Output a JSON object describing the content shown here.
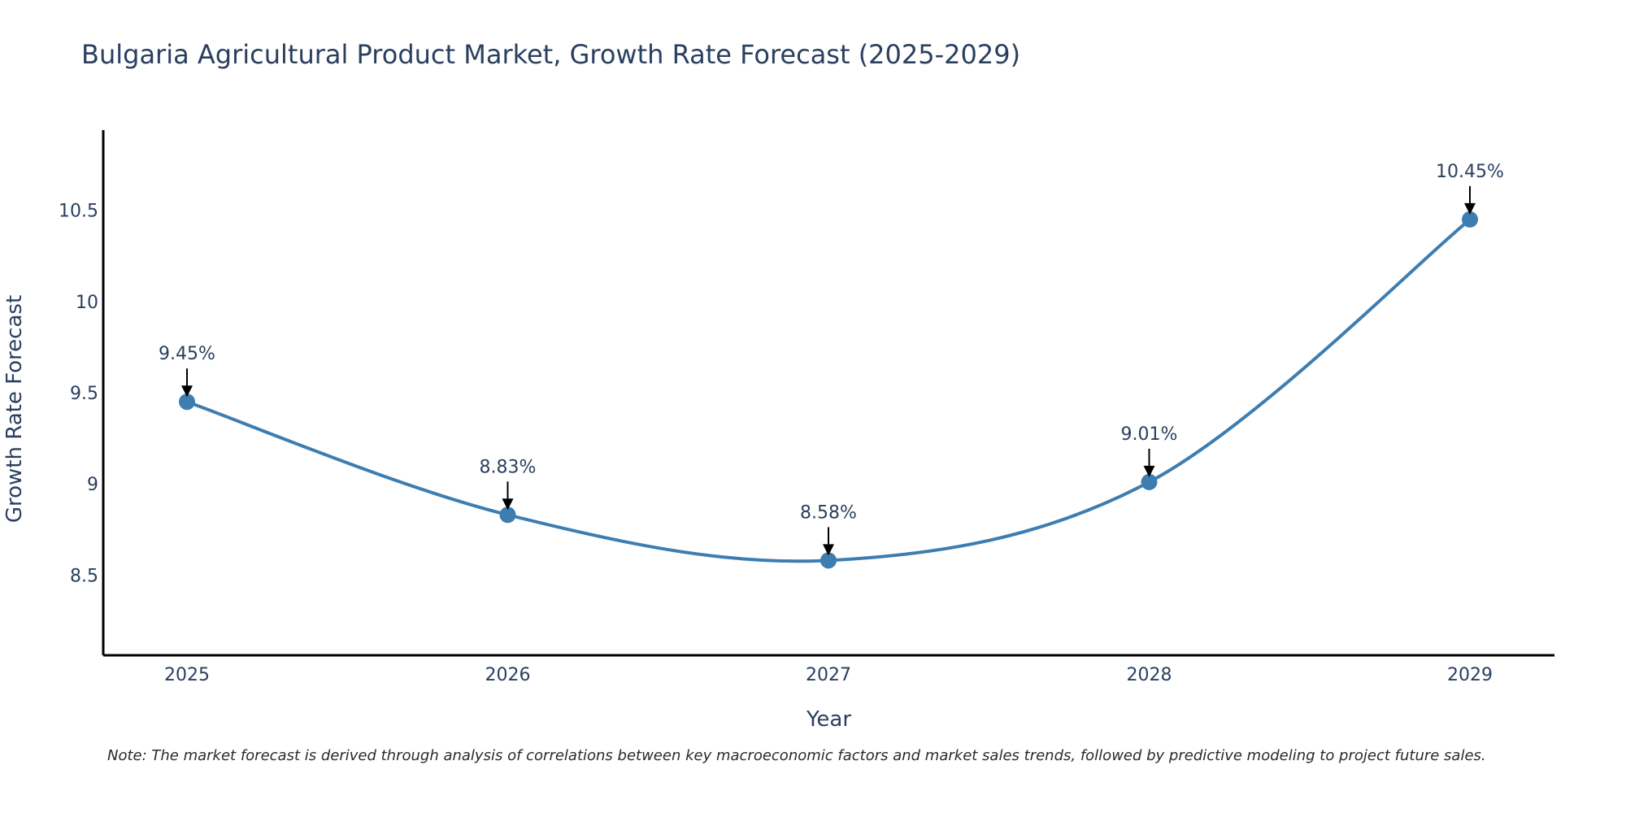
{
  "chart_data": {
    "type": "line",
    "title": "Bulgaria Agricultural Product Market, Growth Rate Forecast (2025-2029)",
    "xlabel": "Year",
    "ylabel": "Growth Rate Forecast",
    "categories": [
      "2025",
      "2026",
      "2027",
      "2028",
      "2029"
    ],
    "values": [
      9.45,
      8.83,
      8.58,
      9.01,
      10.45
    ],
    "data_labels": [
      "9.45%",
      "8.83%",
      "8.58%",
      "9.01%",
      "10.45%"
    ],
    "ylim": [
      8.06,
      10.94
    ],
    "yticks": [
      8.5,
      9,
      9.5,
      10,
      10.5
    ],
    "ytick_labels": [
      "8.5",
      "9",
      "9.5",
      "10",
      "10.5"
    ],
    "grid": false,
    "line_color": "#3d7db0",
    "note": "Note: The market forecast is derived through analysis of correlations between key macroeconomic factors and market sales trends, followed by predictive modeling to project future sales."
  }
}
